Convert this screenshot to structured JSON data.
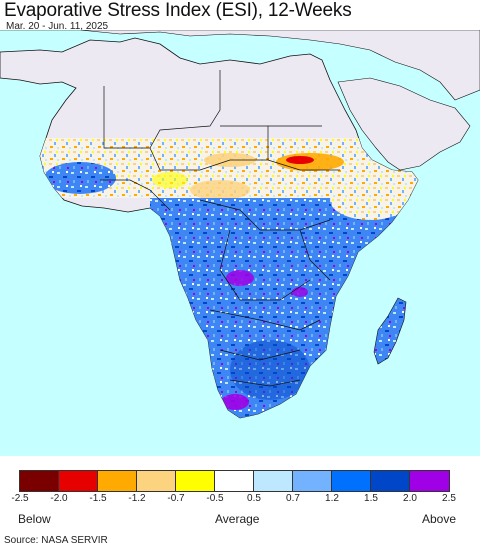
{
  "title": "Evaporative Stress Index (ESI), 12-Weeks",
  "subtitle": "Mar. 20 - Jun. 11, 2025",
  "legend": {
    "colors": [
      "#7a0000",
      "#e60000",
      "#ffaa00",
      "#fcd37f",
      "#ffff00",
      "#ffffff",
      "#bee8ff",
      "#73b2ff",
      "#0070ff",
      "#0046c8",
      "#a000e6"
    ],
    "ticks": [
      "-2.5",
      "-2.0",
      "-1.5",
      "-1.2",
      "-0.7",
      "-0.5",
      "0.5",
      "0.7",
      "1.2",
      "1.5",
      "2.0",
      "2.5"
    ],
    "below_label": "Below",
    "average_label": "Average",
    "above_label": "Above"
  },
  "source": "Source: NASA SERVIR",
  "map_colors": {
    "ocean": "#c6ffff",
    "no_data_land": "#ede9f2",
    "border": "#111111"
  }
}
